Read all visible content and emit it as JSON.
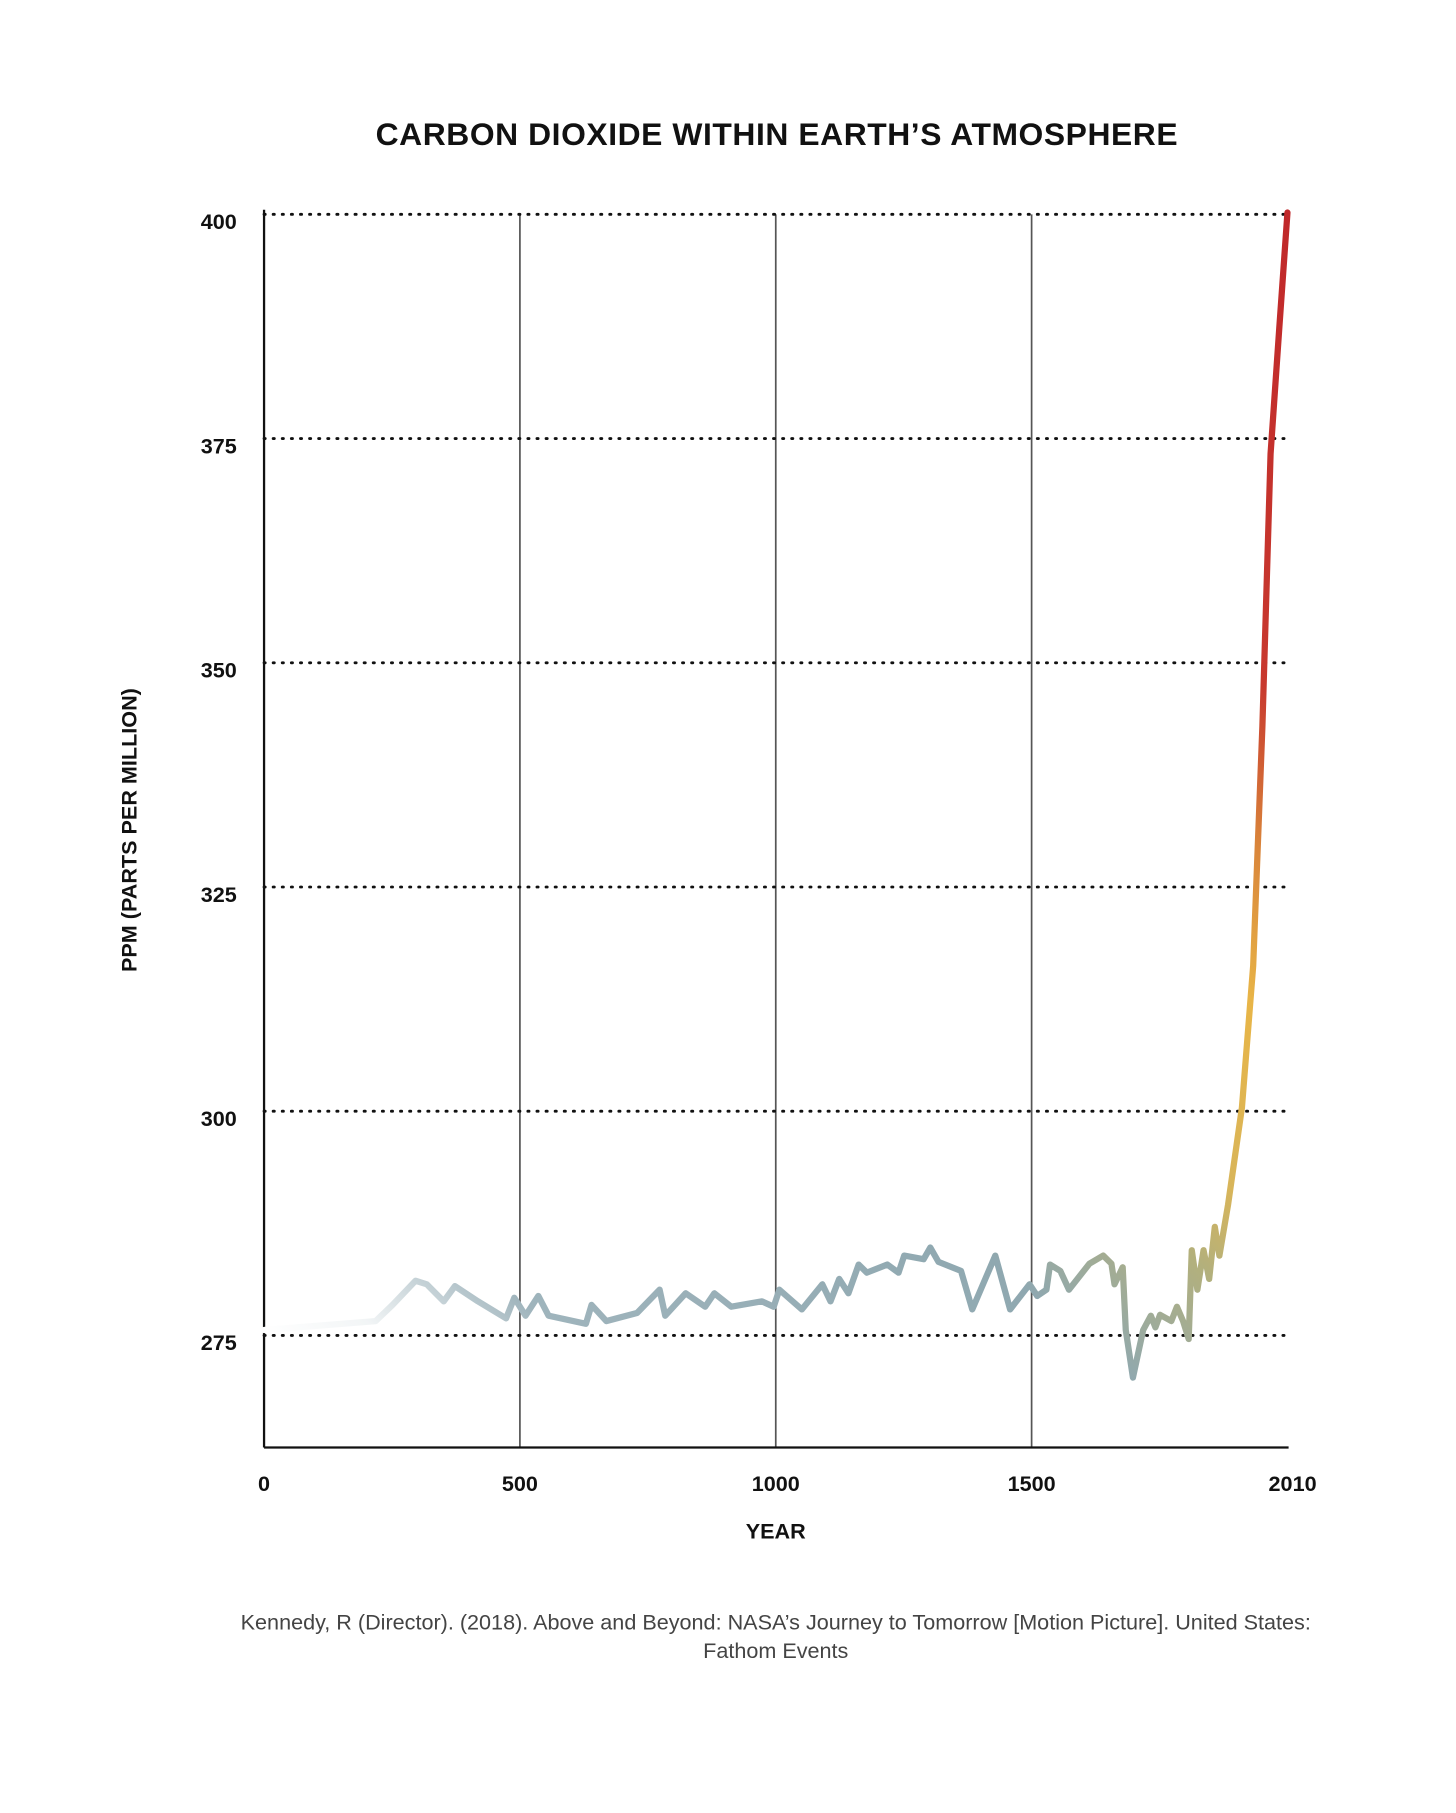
{
  "chart_data": {
    "type": "line",
    "title": "CARBON DIOXIDE WITHIN EARTH’S ATMOSPHERE",
    "x_label": "YEAR",
    "y_label": "PPM (PARTS PER MILLION)",
    "source": [
      "Kennedy, R (Director). (2018). Above and Beyond: NASA’s Journey to Tomorrow [Motion Picture]. United States:",
      "Fathom Events"
    ],
    "x": [
      0,
      218,
      251,
      296,
      318,
      351,
      373,
      418,
      473,
      489,
      511,
      536,
      556,
      629,
      640,
      669,
      729,
      773,
      784,
      824,
      862,
      880,
      913,
      973,
      996,
      1007,
      1051,
      1091,
      1107,
      1124,
      1142,
      1162,
      1178,
      1218,
      1240,
      1251,
      1289,
      1302,
      1318,
      1362,
      1384,
      1429,
      1458,
      1496,
      1511,
      1529,
      1536,
      1556,
      1573,
      1613,
      1640,
      1656,
      1662,
      1678,
      1684,
      1698,
      1718,
      1733,
      1742,
      1751,
      1773,
      1784,
      1796,
      1807,
      1813,
      1824,
      1836,
      1847,
      1858,
      1867,
      1884,
      1911,
      1933,
      1951,
      1967,
      1984,
      2000
    ],
    "values": [
      275.6,
      276.6,
      278.4,
      281.1,
      280.7,
      278.8,
      280.5,
      278.8,
      276.9,
      279.2,
      277.2,
      279.4,
      277.2,
      276.3,
      278.4,
      276.6,
      277.5,
      280.1,
      277.2,
      279.7,
      278.2,
      279.7,
      278.2,
      278.8,
      278.2,
      280.1,
      277.9,
      280.7,
      278.8,
      281.3,
      279.7,
      282.9,
      282.0,
      282.9,
      282.0,
      283.9,
      283.5,
      284.8,
      283.2,
      282.2,
      277.9,
      283.9,
      277.9,
      280.7,
      279.4,
      280.1,
      282.9,
      282.2,
      280.1,
      283.0,
      283.9,
      283.0,
      280.7,
      282.6,
      275.6,
      270.3,
      275.6,
      277.2,
      275.9,
      277.3,
      276.6,
      278.2,
      276.6,
      274.6,
      284.5,
      280.1,
      284.5,
      281.3,
      287.1,
      283.9,
      289.6,
      300.4,
      316.2,
      342.9,
      373.3,
      387.3,
      400.2
    ],
    "xlim": [
      0,
      2010
    ],
    "ylim": [
      262.5,
      400
    ],
    "xticks": [
      0,
      500,
      1000,
      1500,
      2010
    ],
    "yticks": [
      275,
      300,
      325,
      350,
      375,
      400
    ],
    "grid": true
  }
}
